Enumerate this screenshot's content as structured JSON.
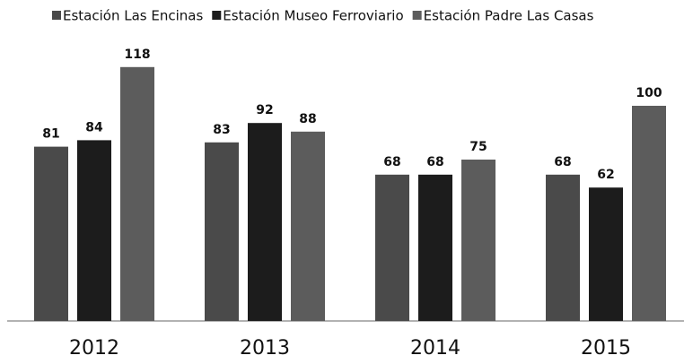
{
  "chart_data": {
    "type": "bar",
    "categories": [
      "2012",
      "2013",
      "2014",
      "2015"
    ],
    "series": [
      {
        "name": "Estación Las Encinas",
        "color": "#4a4a4a",
        "values": [
          81,
          83,
          68,
          68
        ]
      },
      {
        "name": "Estación Museo Ferroviario",
        "color": "#1c1c1c",
        "values": [
          84,
          92,
          68,
          62
        ]
      },
      {
        "name": "Estación Padre Las Casas",
        "color": "#5c5c5c",
        "values": [
          118,
          88,
          75,
          100
        ]
      }
    ],
    "ylim": [
      0,
      120
    ],
    "grid": false,
    "legend": "top"
  }
}
